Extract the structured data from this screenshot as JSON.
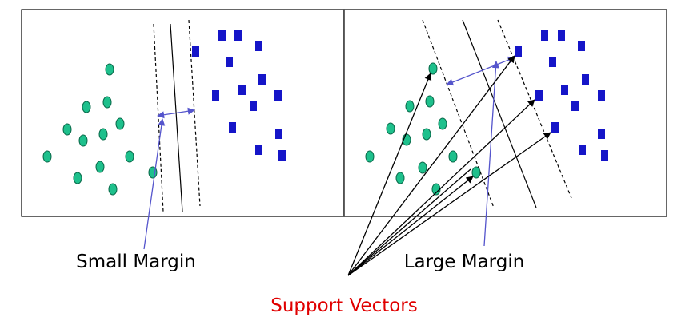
{
  "labels": {
    "left": "Small Margin",
    "right": "Large Margin",
    "bottom": "Support Vectors"
  }
}
